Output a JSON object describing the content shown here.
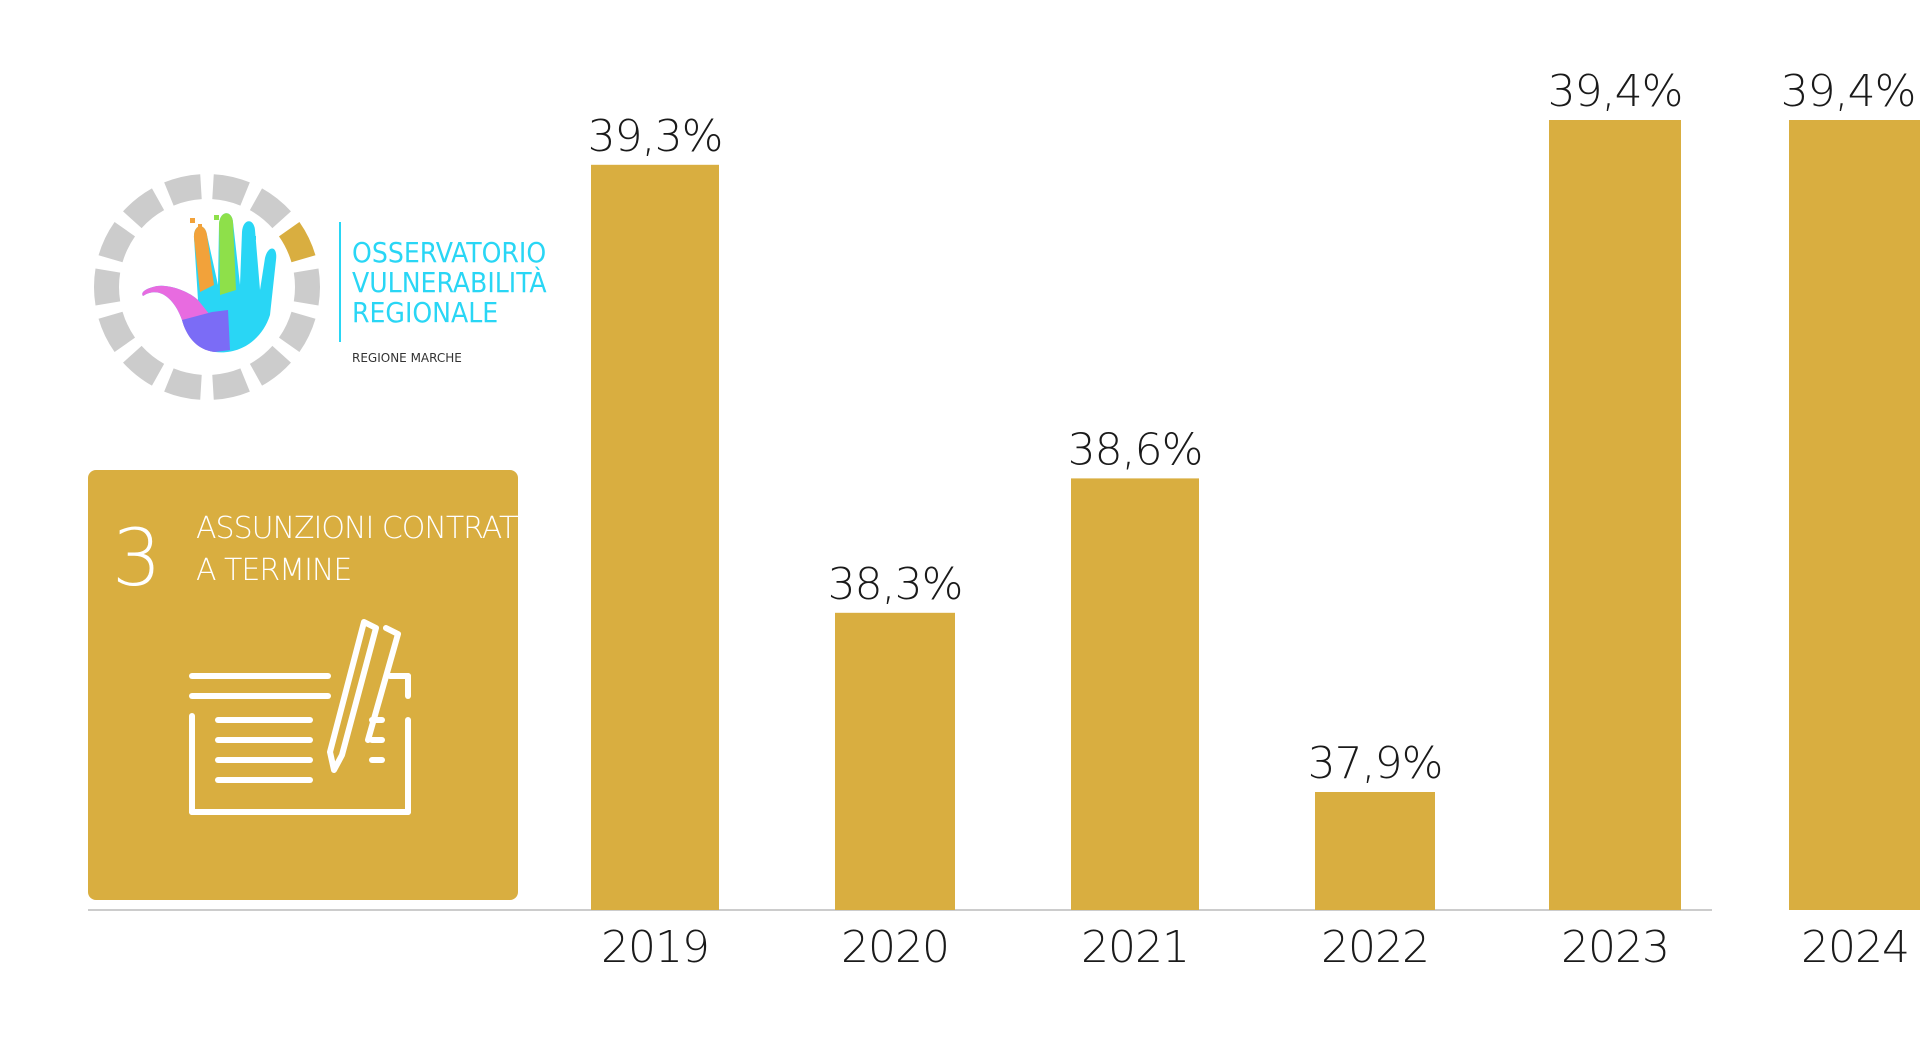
{
  "colors": {
    "accent": "#d9ae40",
    "logo_cyan": "#29d6f5",
    "ring_gray": "#cccccc",
    "baseline": "#cccccc"
  },
  "logo": {
    "lines": [
      "OSSERVATORIO",
      "VULNERABILITÀ",
      "REGIONALE"
    ],
    "subtitle": "REGIONE MARCHE"
  },
  "card": {
    "number": "3",
    "title_lines": [
      "ASSUNZIONI CONTRATTO",
      "A TERMINE"
    ],
    "icon": "contract-with-pen-icon"
  },
  "chart_data": {
    "type": "bar",
    "categories": [
      "2019",
      "2020",
      "2021",
      "2022",
      "2023",
      "2024"
    ],
    "values": [
      39.3,
      38.3,
      38.6,
      37.9,
      39.4,
      39.4
    ],
    "data_labels": [
      "39,3%",
      "38,3%",
      "38,6%",
      "37,9%",
      "39,4%",
      "39,4%"
    ],
    "grid": false,
    "legend": "none",
    "color": "#d9ae40"
  }
}
